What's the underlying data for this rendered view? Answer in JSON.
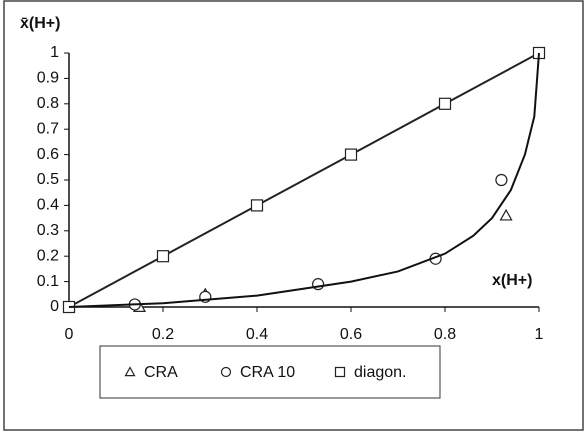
{
  "chart_data": {
    "type": "scatter",
    "y_label": "x̄(H+)",
    "x_label": "x(H+)",
    "xlim": [
      0,
      1
    ],
    "xticks": [
      0,
      0.2,
      0.4,
      0.6,
      0.8,
      1
    ],
    "ylim": [
      0,
      1
    ],
    "yticks": [
      0,
      0.1,
      0.2,
      0.3,
      0.4,
      0.5,
      0.6,
      0.7,
      0.8,
      0.9,
      1
    ],
    "legend": "bottom",
    "series": [
      {
        "name": "CRA",
        "marker": "triangle",
        "color": "#222222",
        "x": [
          0.15,
          0.29,
          0.93
        ],
        "values": [
          0.0,
          0.05,
          0.36
        ]
      },
      {
        "name": "CRA 10",
        "marker": "circle",
        "color": "#222222",
        "x": [
          0.14,
          0.29,
          0.53,
          0.78,
          0.92
        ],
        "values": [
          0.01,
          0.04,
          0.09,
          0.19,
          0.5
        ]
      },
      {
        "name": "diagon.",
        "marker": "square",
        "color": "#222222",
        "line": true,
        "x": [
          0,
          0.2,
          0.4,
          0.6,
          0.8,
          1
        ],
        "values": [
          0,
          0.2,
          0.4,
          0.6,
          0.8,
          1
        ]
      },
      {
        "marker": "none",
        "color": "#111111",
        "line": true,
        "x": [
          0,
          0.2,
          0.4,
          0.6,
          0.7,
          0.8,
          0.86,
          0.9,
          0.94,
          0.97,
          0.99,
          1
        ],
        "values": [
          0,
          0.015,
          0.045,
          0.1,
          0.14,
          0.21,
          0.28,
          0.35,
          0.46,
          0.6,
          0.75,
          1
        ]
      }
    ]
  }
}
